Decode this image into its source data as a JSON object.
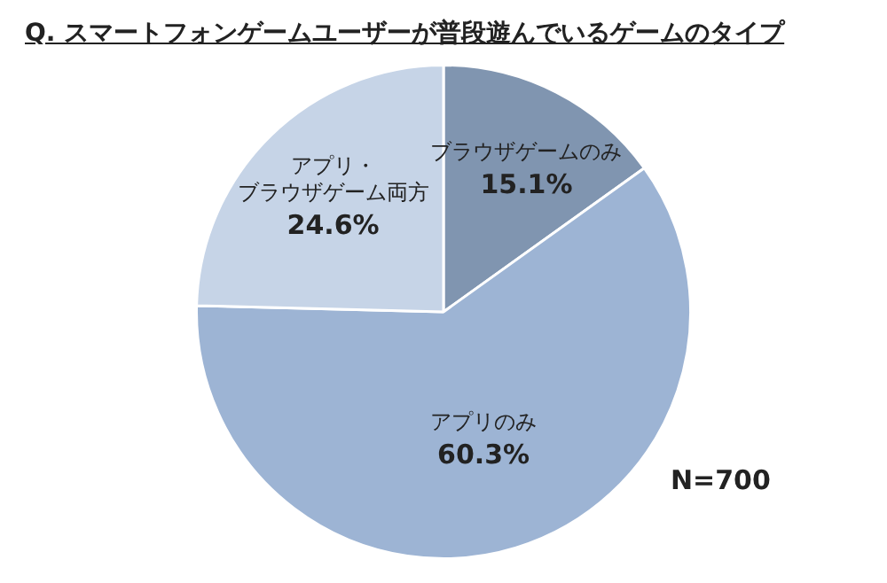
{
  "chart_data": {
    "type": "pie",
    "title": "Q. スマートフォンゲームユーザーが普段遊んでいるゲームのタイプ",
    "categories": [
      "ブラウザゲームのみ",
      "アプリのみ",
      "アプリ・ブラウザゲーム両方"
    ],
    "values": [
      15.1,
      60.3,
      24.6
    ],
    "colors": [
      "#8095b0",
      "#9db4d4",
      "#c6d4e7"
    ],
    "value_labels": [
      "15.1%",
      "60.3%",
      "24.6%"
    ],
    "annotations": [
      "N=700"
    ],
    "legend": false
  }
}
